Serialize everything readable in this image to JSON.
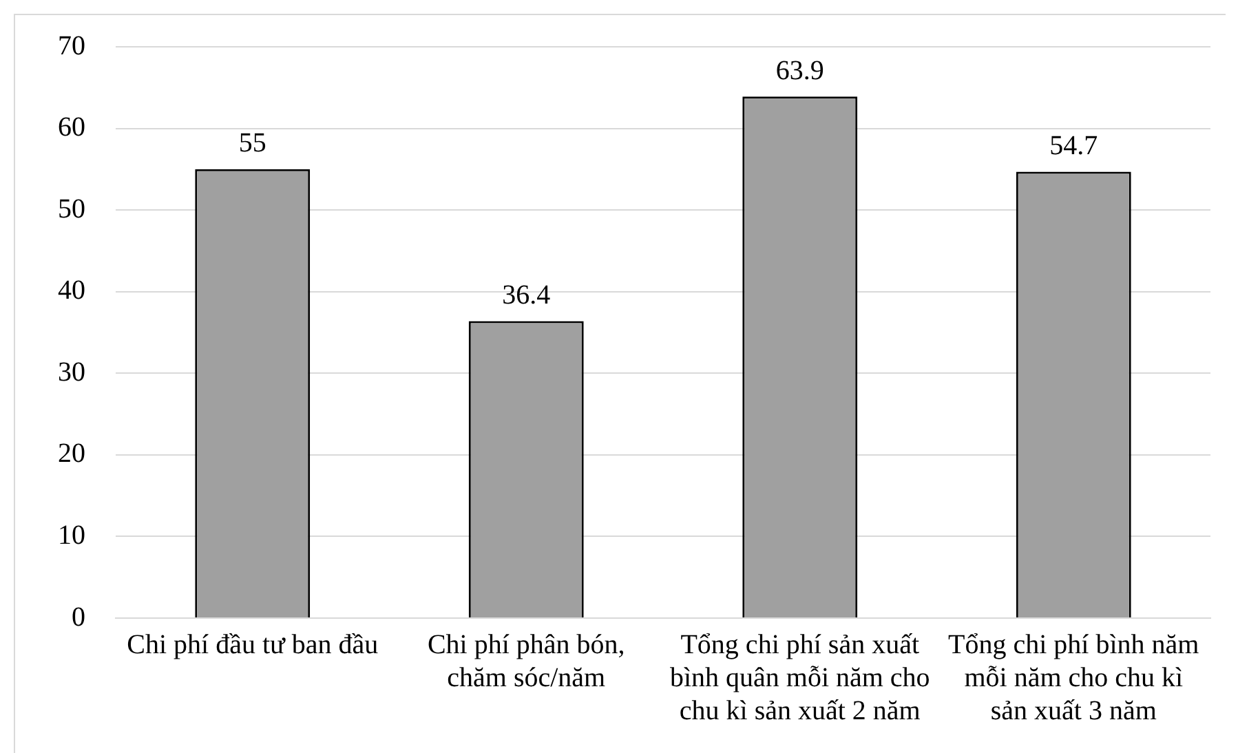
{
  "chart_data": {
    "type": "bar",
    "categories": [
      "Chi phí đầu tư ban đầu",
      "Chi phí phân bón, chăm sóc/năm",
      "Tổng chi phí sản xuất bình quân mỗi năm cho chu kì sản xuất 2 năm",
      "Tổng chi phí bình năm mỗi năm cho chu kì sản xuất 3 năm"
    ],
    "values": [
      55,
      36.4,
      63.9,
      54.7
    ],
    "color": "#a0a0a0",
    "ylim": [
      0,
      70
    ],
    "yticks": [
      0,
      10,
      20,
      30,
      40,
      50,
      60,
      70
    ],
    "grid": "y",
    "data_labels": true,
    "legend": false
  }
}
